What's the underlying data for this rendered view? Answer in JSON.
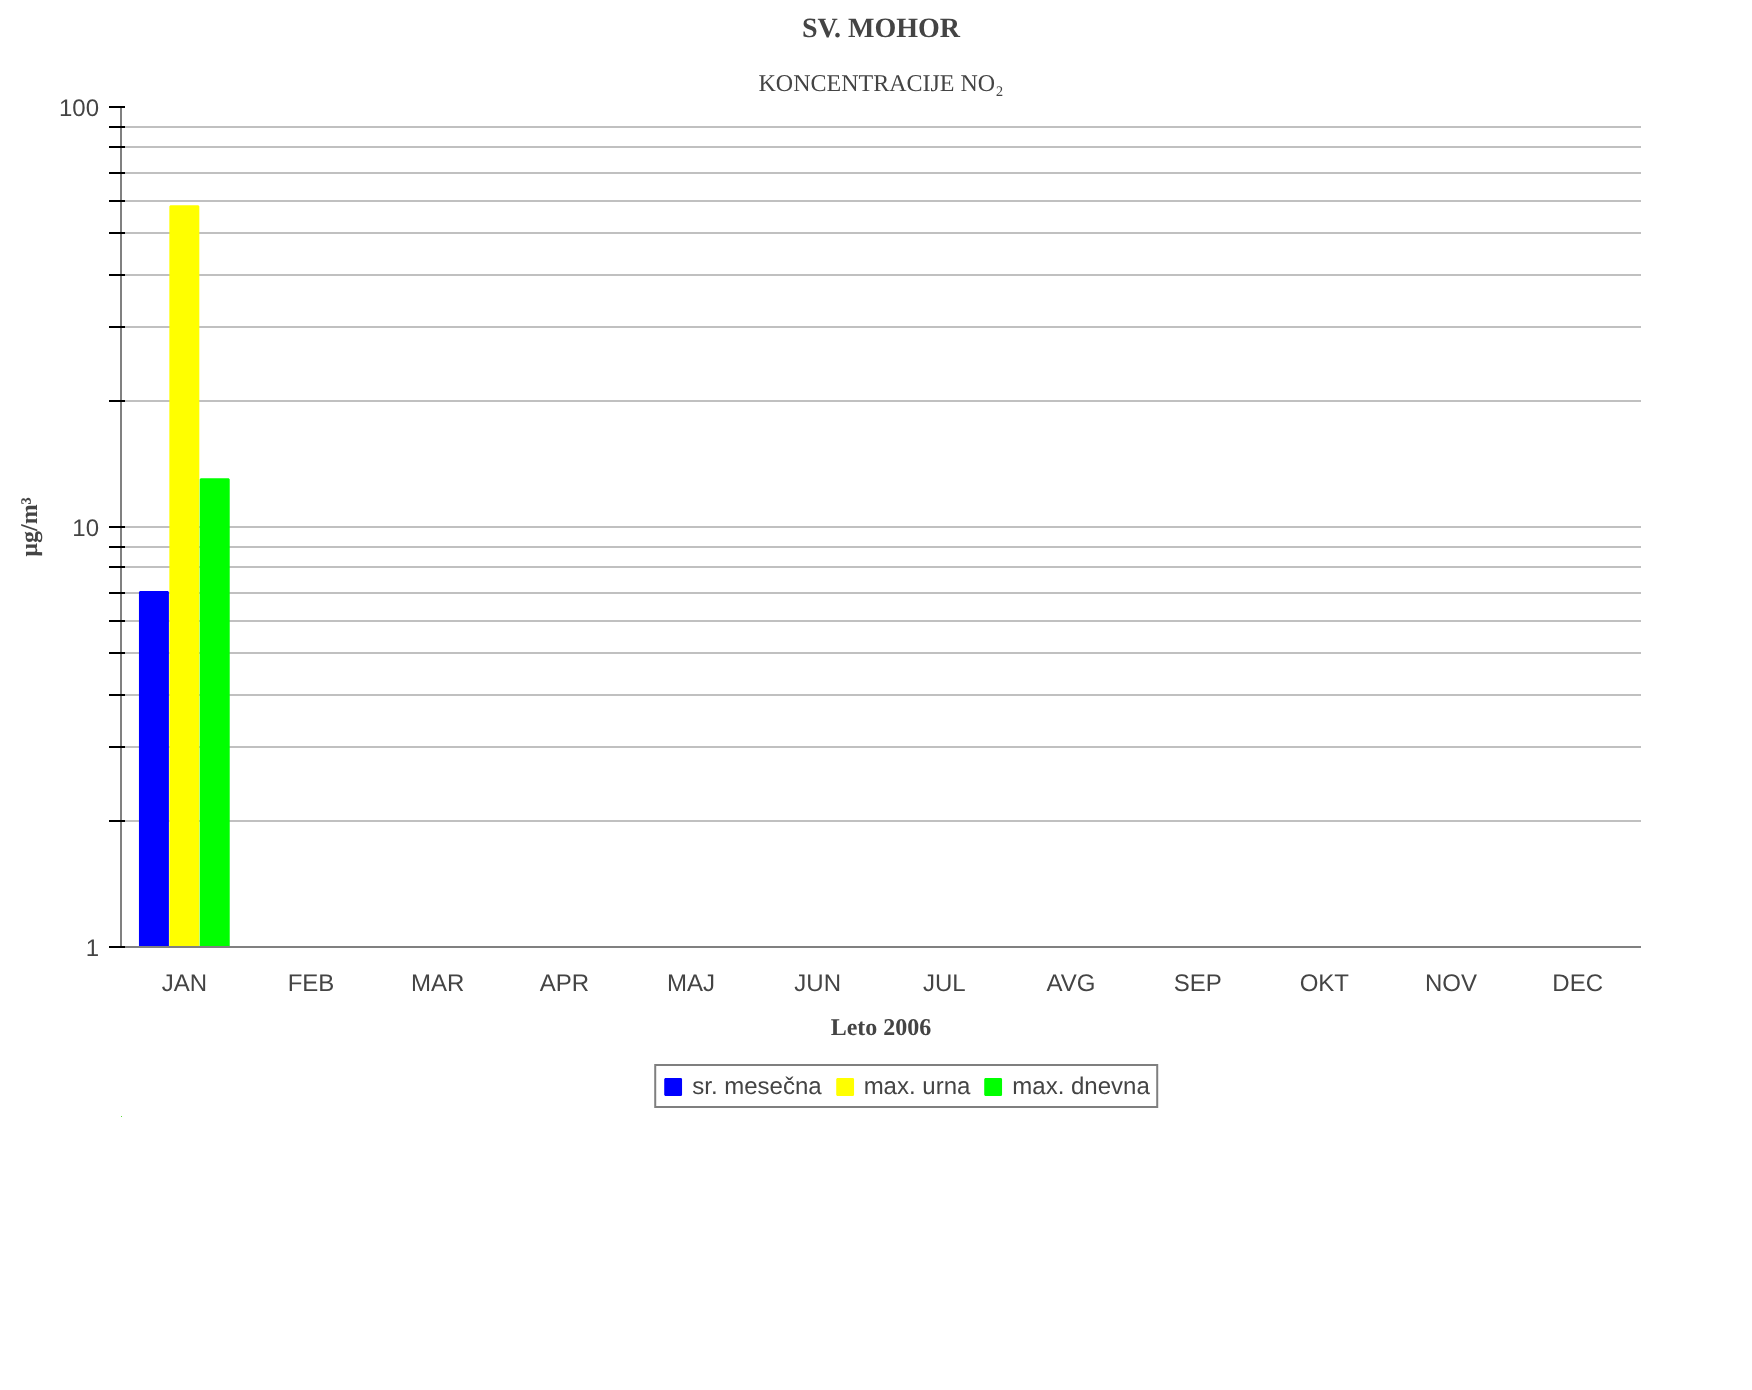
{
  "chart_data": {
    "type": "bar",
    "title": "SV. MOHOR",
    "subtitle": "KONCENTRACIJE NO₂",
    "xlabel": "Leto 2006",
    "ylabel": "µg/m³",
    "categories": [
      "JAN",
      "FEB",
      "MAR",
      "APR",
      "MAJ",
      "JUN",
      "JUL",
      "AVG",
      "SEP",
      "OKT",
      "NOV",
      "DEC"
    ],
    "series": [
      {
        "name": "sr. mesečna",
        "color": "#0000ff",
        "values": [
          7,
          null,
          null,
          null,
          null,
          null,
          null,
          null,
          null,
          null,
          null,
          null
        ]
      },
      {
        "name": "max. urna",
        "color": "#ffff00",
        "values": [
          58,
          null,
          null,
          null,
          null,
          null,
          null,
          null,
          null,
          null,
          null,
          null
        ]
      },
      {
        "name": "max. dnevna",
        "color": "#00ff00",
        "values": [
          13,
          null,
          null,
          null,
          null,
          null,
          null,
          null,
          null,
          null,
          null,
          null
        ]
      }
    ],
    "log": true,
    "ylim": [
      1,
      100
    ],
    "yticks": [
      1,
      {
        "value": 2,
        "label": null
      },
      {
        "value": 3,
        "label": null
      },
      {
        "value": 4,
        "label": null
      },
      {
        "value": 5,
        "label": null
      },
      {
        "value": 6,
        "label": null
      },
      {
        "value": 7,
        "label": null
      },
      {
        "value": 8,
        "label": null
      },
      {
        "value": 9,
        "label": null
      },
      10,
      {
        "value": 20,
        "label": null
      },
      {
        "value": 30,
        "label": null
      },
      {
        "value": 40,
        "label": null
      },
      {
        "value": 50,
        "label": null
      },
      {
        "value": 60,
        "label": null
      },
      {
        "value": 70,
        "label": null
      },
      {
        "value": 80,
        "label": null
      },
      {
        "value": 90,
        "label": null
      },
      100
    ],
    "grid": "y",
    "legend": "bottom"
  }
}
